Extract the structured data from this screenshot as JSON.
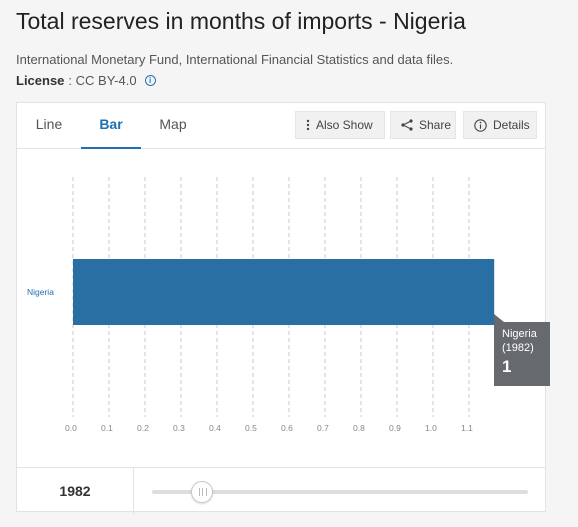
{
  "header": {
    "title": "Total reserves in months of imports - Nigeria",
    "source": "International Monetary Fund, International Financial Statistics and data files.",
    "license_label": "License",
    "license_value": ": CC BY-4.0"
  },
  "tabs": [
    {
      "label": "Line",
      "active": false
    },
    {
      "label": "Bar",
      "active": true
    },
    {
      "label": "Map",
      "active": false
    }
  ],
  "toolbar": {
    "also_show": "Also Show",
    "share": "Share",
    "details": "Details"
  },
  "chart_data": {
    "type": "bar",
    "orientation": "horizontal",
    "categories": [
      "Nigeria"
    ],
    "values": [
      1.17
    ],
    "xlim": [
      0,
      1.2
    ],
    "xticks": [
      "0.0",
      "0.1",
      "0.2",
      "0.3",
      "0.4",
      "0.5",
      "0.6",
      "0.7",
      "0.8",
      "0.9",
      "1.0",
      "1.1"
    ],
    "grid": true,
    "bar_color": "#2a6fa3"
  },
  "tooltip": {
    "name": "Nigeria",
    "year": "(1982)",
    "value": "1"
  },
  "footer": {
    "year": "1982"
  },
  "colors": {
    "accent": "#1f6fb1",
    "bar": "#2a6fa3",
    "tooltip_bg": "#666a6e"
  }
}
